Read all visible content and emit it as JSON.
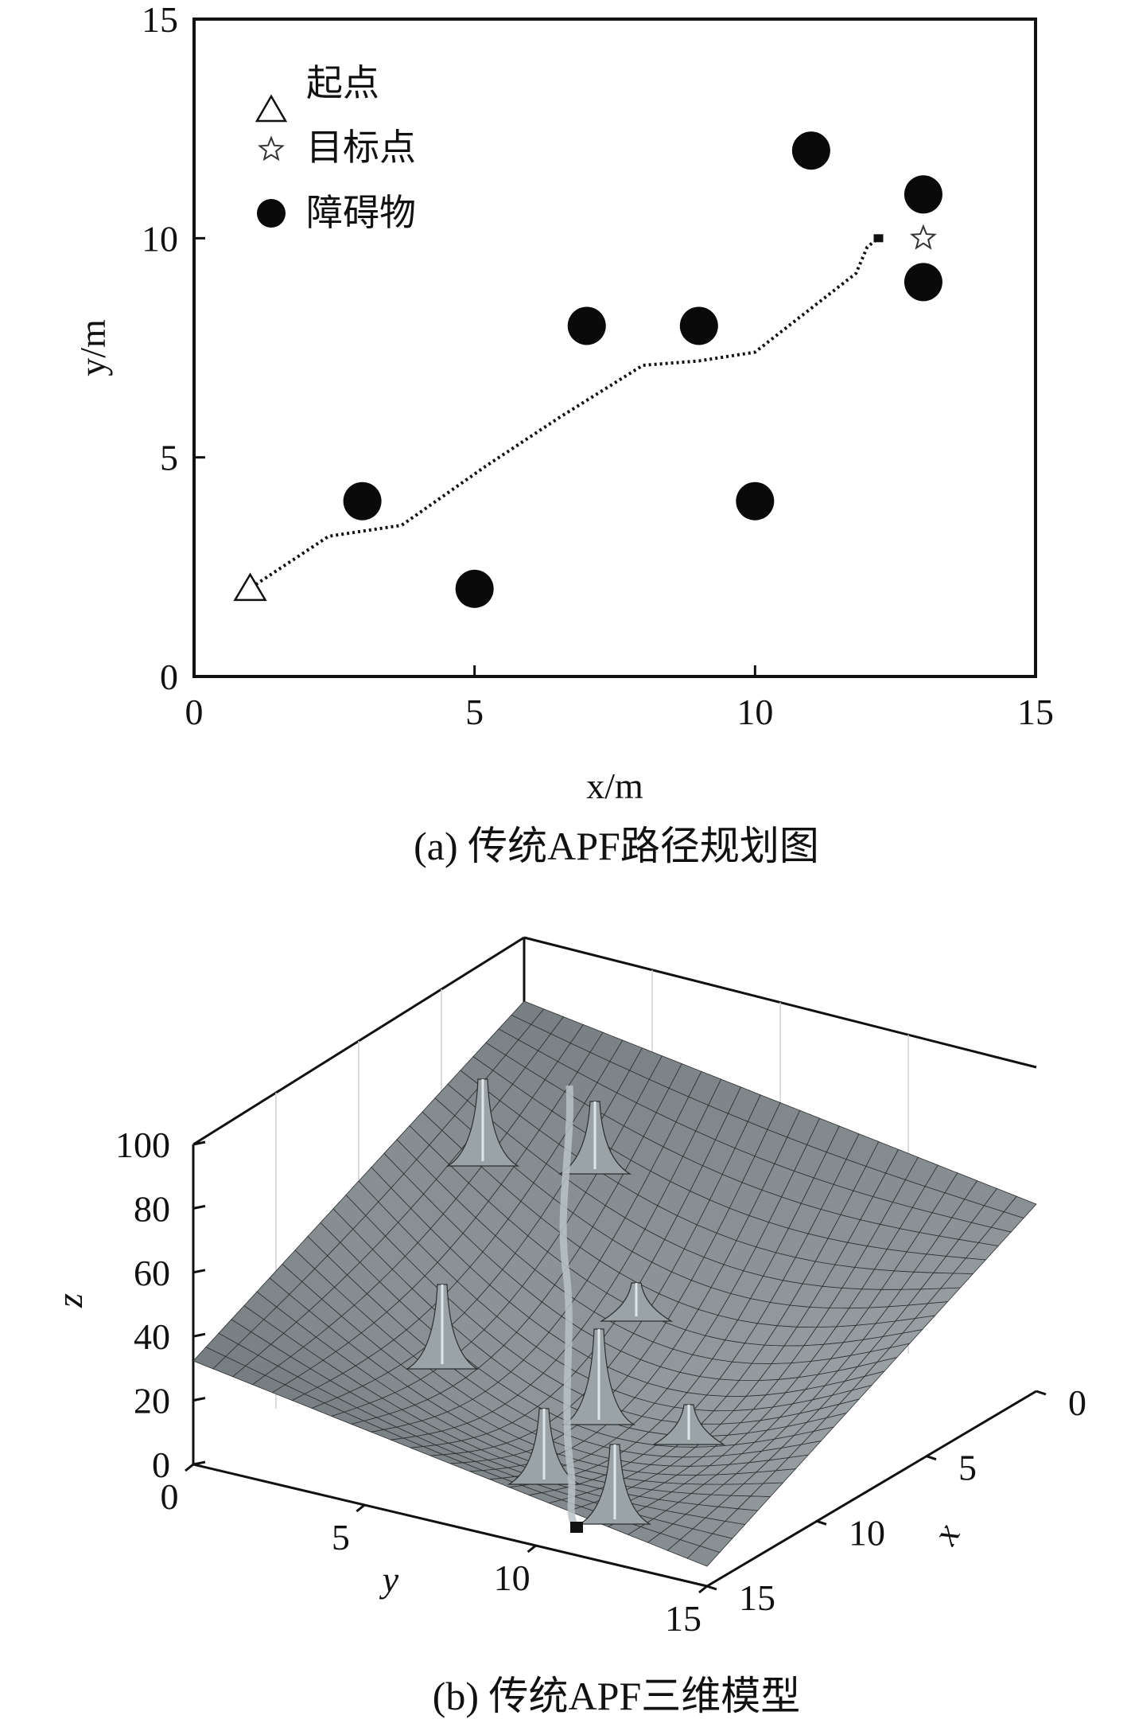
{
  "chart_data": [
    {
      "type": "scatter",
      "title": "",
      "xlabel": "x/m",
      "ylabel": "y/m",
      "xlim": [
        0,
        15
      ],
      "ylim": [
        0,
        15
      ],
      "xticks": [
        0,
        5,
        10,
        15
      ],
      "yticks": [
        0,
        5,
        10,
        15
      ],
      "grid": false,
      "legend_position": "top-left",
      "legend": [
        {
          "label": "起点",
          "marker": "triangle-open"
        },
        {
          "label": "目标点",
          "marker": "star-open"
        },
        {
          "label": "障碍物",
          "marker": "circle-filled"
        }
      ],
      "start": {
        "x": 1,
        "y": 2
      },
      "goal": {
        "x": 13,
        "y": 10
      },
      "obstacles": [
        {
          "x": 3,
          "y": 4
        },
        {
          "x": 5,
          "y": 2
        },
        {
          "x": 7,
          "y": 8
        },
        {
          "x": 9,
          "y": 8
        },
        {
          "x": 10,
          "y": 4
        },
        {
          "x": 11,
          "y": 12
        },
        {
          "x": 13,
          "y": 11
        },
        {
          "x": 13,
          "y": 9
        }
      ],
      "path": [
        {
          "x": 1.1,
          "y": 2.1
        },
        {
          "x": 2.4,
          "y": 3.2
        },
        {
          "x": 3.7,
          "y": 3.45
        },
        {
          "x": 5.2,
          "y": 4.8
        },
        {
          "x": 6.5,
          "y": 5.9
        },
        {
          "x": 8.0,
          "y": 7.1
        },
        {
          "x": 9.0,
          "y": 7.2
        },
        {
          "x": 10.0,
          "y": 7.4
        },
        {
          "x": 11.0,
          "y": 8.4
        },
        {
          "x": 11.8,
          "y": 9.2
        },
        {
          "x": 12.0,
          "y": 9.8
        },
        {
          "x": 12.2,
          "y": 10.0
        }
      ],
      "caption": "(a) 传统APF路径规划图"
    },
    {
      "type": "surface",
      "title": "",
      "xlabel": "x",
      "ylabel": "y",
      "zlabel": "z",
      "xlim": [
        0,
        15
      ],
      "ylim": [
        0,
        15
      ],
      "zlim": [
        0,
        100
      ],
      "xticks": [
        0,
        5,
        10,
        15
      ],
      "yticks": [
        0,
        5,
        10,
        15
      ],
      "zticks": [
        0,
        20,
        40,
        60,
        80,
        100
      ],
      "grid": true,
      "surface_color": "#8a9396",
      "caption": "(b) 传统APF三维模型"
    }
  ]
}
